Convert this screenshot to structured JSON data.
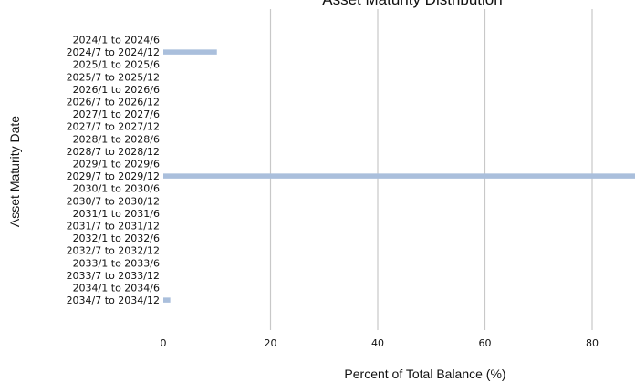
{
  "chart_data": {
    "type": "bar",
    "orientation": "horizontal",
    "title": "Asset Maturity Distribution",
    "xlabel": "Percent of Total Balance (%)",
    "ylabel": "Asset Maturity Date",
    "xlim": [
      0,
      88
    ],
    "xticks": [
      "0",
      "20",
      "40",
      "60",
      "80"
    ],
    "grid": "vertical",
    "bar_color": "#aabfdc",
    "grid_color": "#c8c8c8",
    "categories": [
      "2024/1 to 2024/6",
      "2024/7 to 2024/12",
      "2025/1 to 2025/6",
      "2025/7 to 2025/12",
      "2026/1 to 2026/6",
      "2026/7 to 2026/12",
      "2027/1 to 2027/6",
      "2027/7 to 2027/12",
      "2028/1 to 2028/6",
      "2028/7 to 2028/12",
      "2029/1 to 2029/6",
      "2029/7 to 2029/12",
      "2030/1 to 2030/6",
      "2030/7 to 2030/12",
      "2031/1 to 2031/6",
      "2031/7 to 2031/12",
      "2032/1 to 2032/6",
      "2032/7 to 2032/12",
      "2033/1 to 2033/6",
      "2033/7 to 2033/12",
      "2034/1 to 2034/6",
      "2034/7 to 2034/12"
    ],
    "values": [
      0,
      10,
      0,
      0,
      0,
      0,
      0,
      0,
      0,
      0,
      0,
      88.5,
      0,
      0,
      0,
      0,
      0,
      0,
      0,
      0,
      0,
      1.3
    ]
  }
}
